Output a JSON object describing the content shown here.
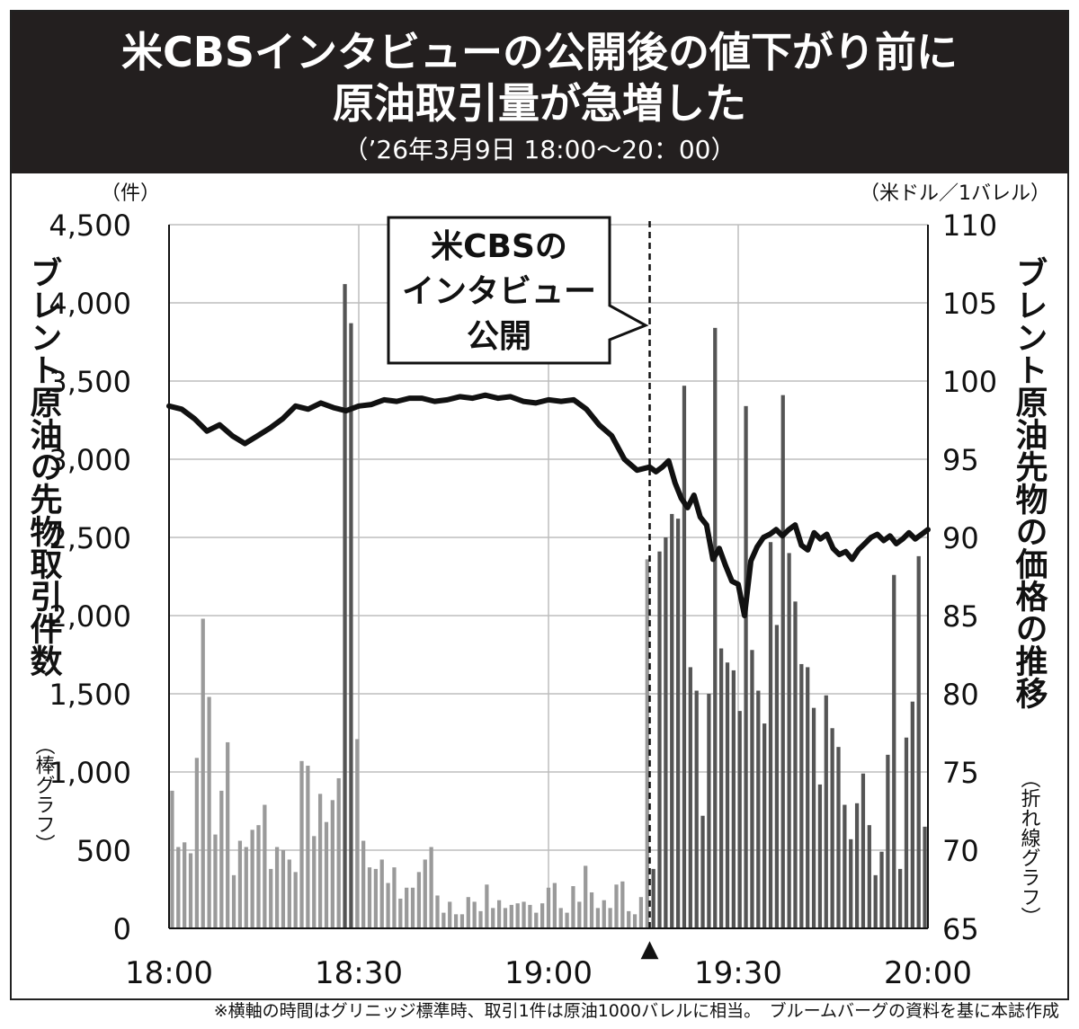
{
  "header": {
    "title_line1": "米CBSインタビューの公開後の値下がり前に",
    "title_line2": "原油取引量が急増した",
    "subtitle": "（’26年3月9日 18:00〜20：00）"
  },
  "colors": {
    "header_bg": "#231f1f",
    "header_text": "#ffffff",
    "bar_before": "#9a9a9a",
    "bar_after": "#555555",
    "bar_spike": "#555555",
    "price_line": "#111111",
    "grid": "#bdbdbd"
  },
  "chart_data": {
    "type": "bar+line",
    "unit_left": "（件）",
    "unit_right": "（米ドル／1バレル）",
    "ylabel_left": "ブレント原油の先物取引件数",
    "ylabel_left_note": "（棒グラフ）",
    "ylabel_right": "ブレント原油先物の価格の推移",
    "ylabel_right_note": "（折れ線グラフ）",
    "y_left_lim": [
      0,
      4500
    ],
    "y_left_ticks": [
      "0",
      "500",
      "1,000",
      "1,500",
      "2,000",
      "2,500",
      "3,000",
      "3,500",
      "4,000",
      "4,500"
    ],
    "y_right_lim": [
      65,
      110
    ],
    "y_right_ticks": [
      "65",
      "70",
      "75",
      "80",
      "85",
      "90",
      "95",
      "100",
      "105",
      "110"
    ],
    "x_ticks": [
      "18:00",
      "18:30",
      "19:00",
      "19:30",
      "20:00"
    ],
    "x_range_minutes": [
      0,
      120
    ],
    "grid": true,
    "annotation": {
      "lines": [
        "米CBSの",
        "インタビュー",
        "公開"
      ],
      "time_minutes": 76,
      "marker": "▲"
    },
    "footnote": "※横軸の時間はグリニッジ標準時、取引1件は原油1000バレルに相当。　ブルームバーグの資料を基に本誌作成",
    "bar_series": {
      "name": "取引件数",
      "values": [
        880,
        520,
        550,
        480,
        1090,
        1980,
        1480,
        600,
        880,
        1190,
        340,
        560,
        520,
        630,
        660,
        790,
        380,
        520,
        500,
        440,
        360,
        1070,
        1040,
        590,
        860,
        680,
        820,
        960,
        4120,
        3870,
        1210,
        560,
        390,
        380,
        440,
        290,
        390,
        190,
        260,
        260,
        360,
        440,
        520,
        210,
        100,
        170,
        90,
        90,
        200,
        170,
        110,
        280,
        130,
        180,
        130,
        150,
        160,
        170,
        150,
        100,
        160,
        260,
        290,
        130,
        100,
        270,
        170,
        400,
        230,
        130,
        180,
        130,
        280,
        300,
        110,
        90,
        200,
        2360,
        380,
        2410,
        2500,
        2650,
        2620,
        3470,
        1670,
        1520,
        720,
        1500,
        3840,
        1790,
        1700,
        1650,
        1390,
        3340,
        1780,
        1520,
        1310,
        2470,
        1940,
        3410,
        2400,
        2090,
        1690,
        1670,
        1410,
        920,
        1490,
        1280,
        1160,
        790,
        570,
        800,
        990,
        660,
        340,
        490,
        1110,
        2260,
        380,
        1220,
        1450,
        2380,
        650
      ]
    },
    "line_series": {
      "name": "価格",
      "x": [
        0,
        2,
        4,
        6,
        8,
        10,
        12,
        14,
        16,
        18,
        20,
        22,
        24,
        26,
        28,
        30,
        32,
        34,
        36,
        38,
        40,
        42,
        44,
        46,
        48,
        50,
        52,
        54,
        56,
        58,
        60,
        62,
        64,
        66,
        68,
        70,
        72,
        74,
        76,
        77,
        78,
        79,
        80,
        81,
        82,
        83,
        84,
        85,
        86,
        87,
        88,
        89,
        90,
        91,
        92,
        93,
        94,
        95,
        96,
        97,
        98,
        99,
        100,
        101,
        102,
        103,
        104,
        105,
        106,
        107,
        108,
        109,
        110,
        111,
        112,
        113,
        114,
        115,
        116,
        117,
        118,
        119,
        120
      ],
      "y": [
        98.4,
        98.2,
        97.6,
        96.8,
        97.2,
        96.5,
        96.0,
        96.5,
        97.0,
        97.6,
        98.4,
        98.2,
        98.6,
        98.3,
        98.1,
        98.4,
        98.5,
        98.8,
        98.7,
        98.9,
        98.9,
        98.7,
        98.8,
        99.0,
        98.9,
        99.1,
        98.9,
        99.0,
        98.7,
        98.6,
        98.8,
        98.7,
        98.8,
        98.2,
        97.2,
        96.5,
        95.0,
        94.3,
        94.5,
        94.2,
        94.5,
        94.9,
        93.5,
        92.5,
        91.9,
        92.7,
        91.3,
        90.8,
        88.6,
        89.3,
        88.2,
        87.2,
        87.0,
        85.0,
        88.5,
        89.4,
        90.0,
        90.2,
        90.5,
        90.1,
        90.5,
        90.8,
        89.5,
        89.2,
        90.3,
        89.9,
        90.2,
        89.3,
        88.9,
        89.1,
        88.6,
        89.2,
        89.6,
        90.0,
        90.2,
        89.8,
        90.1,
        89.6,
        89.9,
        90.3,
        89.9,
        90.2,
        90.5
      ]
    }
  }
}
